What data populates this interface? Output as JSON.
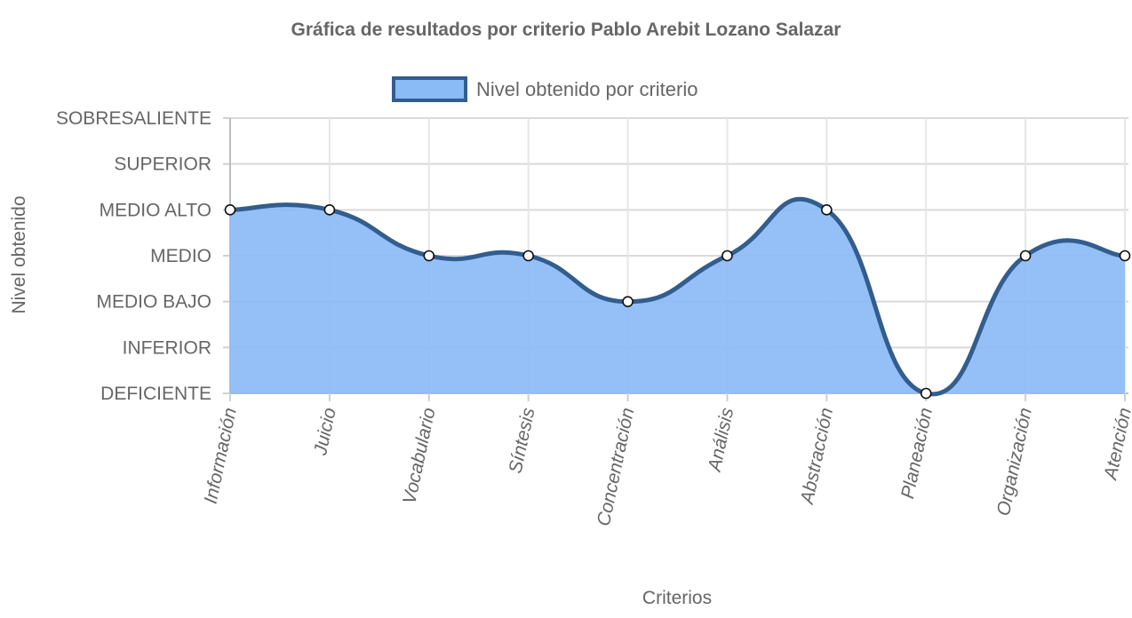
{
  "chart_data": {
    "type": "area",
    "title": "Gráfica de resultados por criterio Pablo Arebit Lozano Salazar",
    "xlabel": "Criterios",
    "ylabel": "Nivel obtenido",
    "categories": [
      "Información",
      "Juicio",
      "Vocabulario",
      "Síntesis",
      "Concentración",
      "Análisis",
      "Abstracción",
      "Planeación",
      "Organización",
      "Atención"
    ],
    "y_levels": [
      "DEFICIENTE",
      "INFERIOR",
      "MEDIO BAJO",
      "MEDIO",
      "MEDIO ALTO",
      "SUPERIOR",
      "SOBRESALIENTE"
    ],
    "ylim": [
      0,
      6
    ],
    "series": [
      {
        "name": "Nivel obtenido por criterio",
        "values": [
          4,
          4,
          3,
          3,
          2,
          3,
          4,
          0,
          3,
          3
        ],
        "line_color": "#325d8e",
        "fill_color": "#8bbbf6"
      }
    ],
    "legend": "top",
    "grid": true,
    "curved": true
  }
}
